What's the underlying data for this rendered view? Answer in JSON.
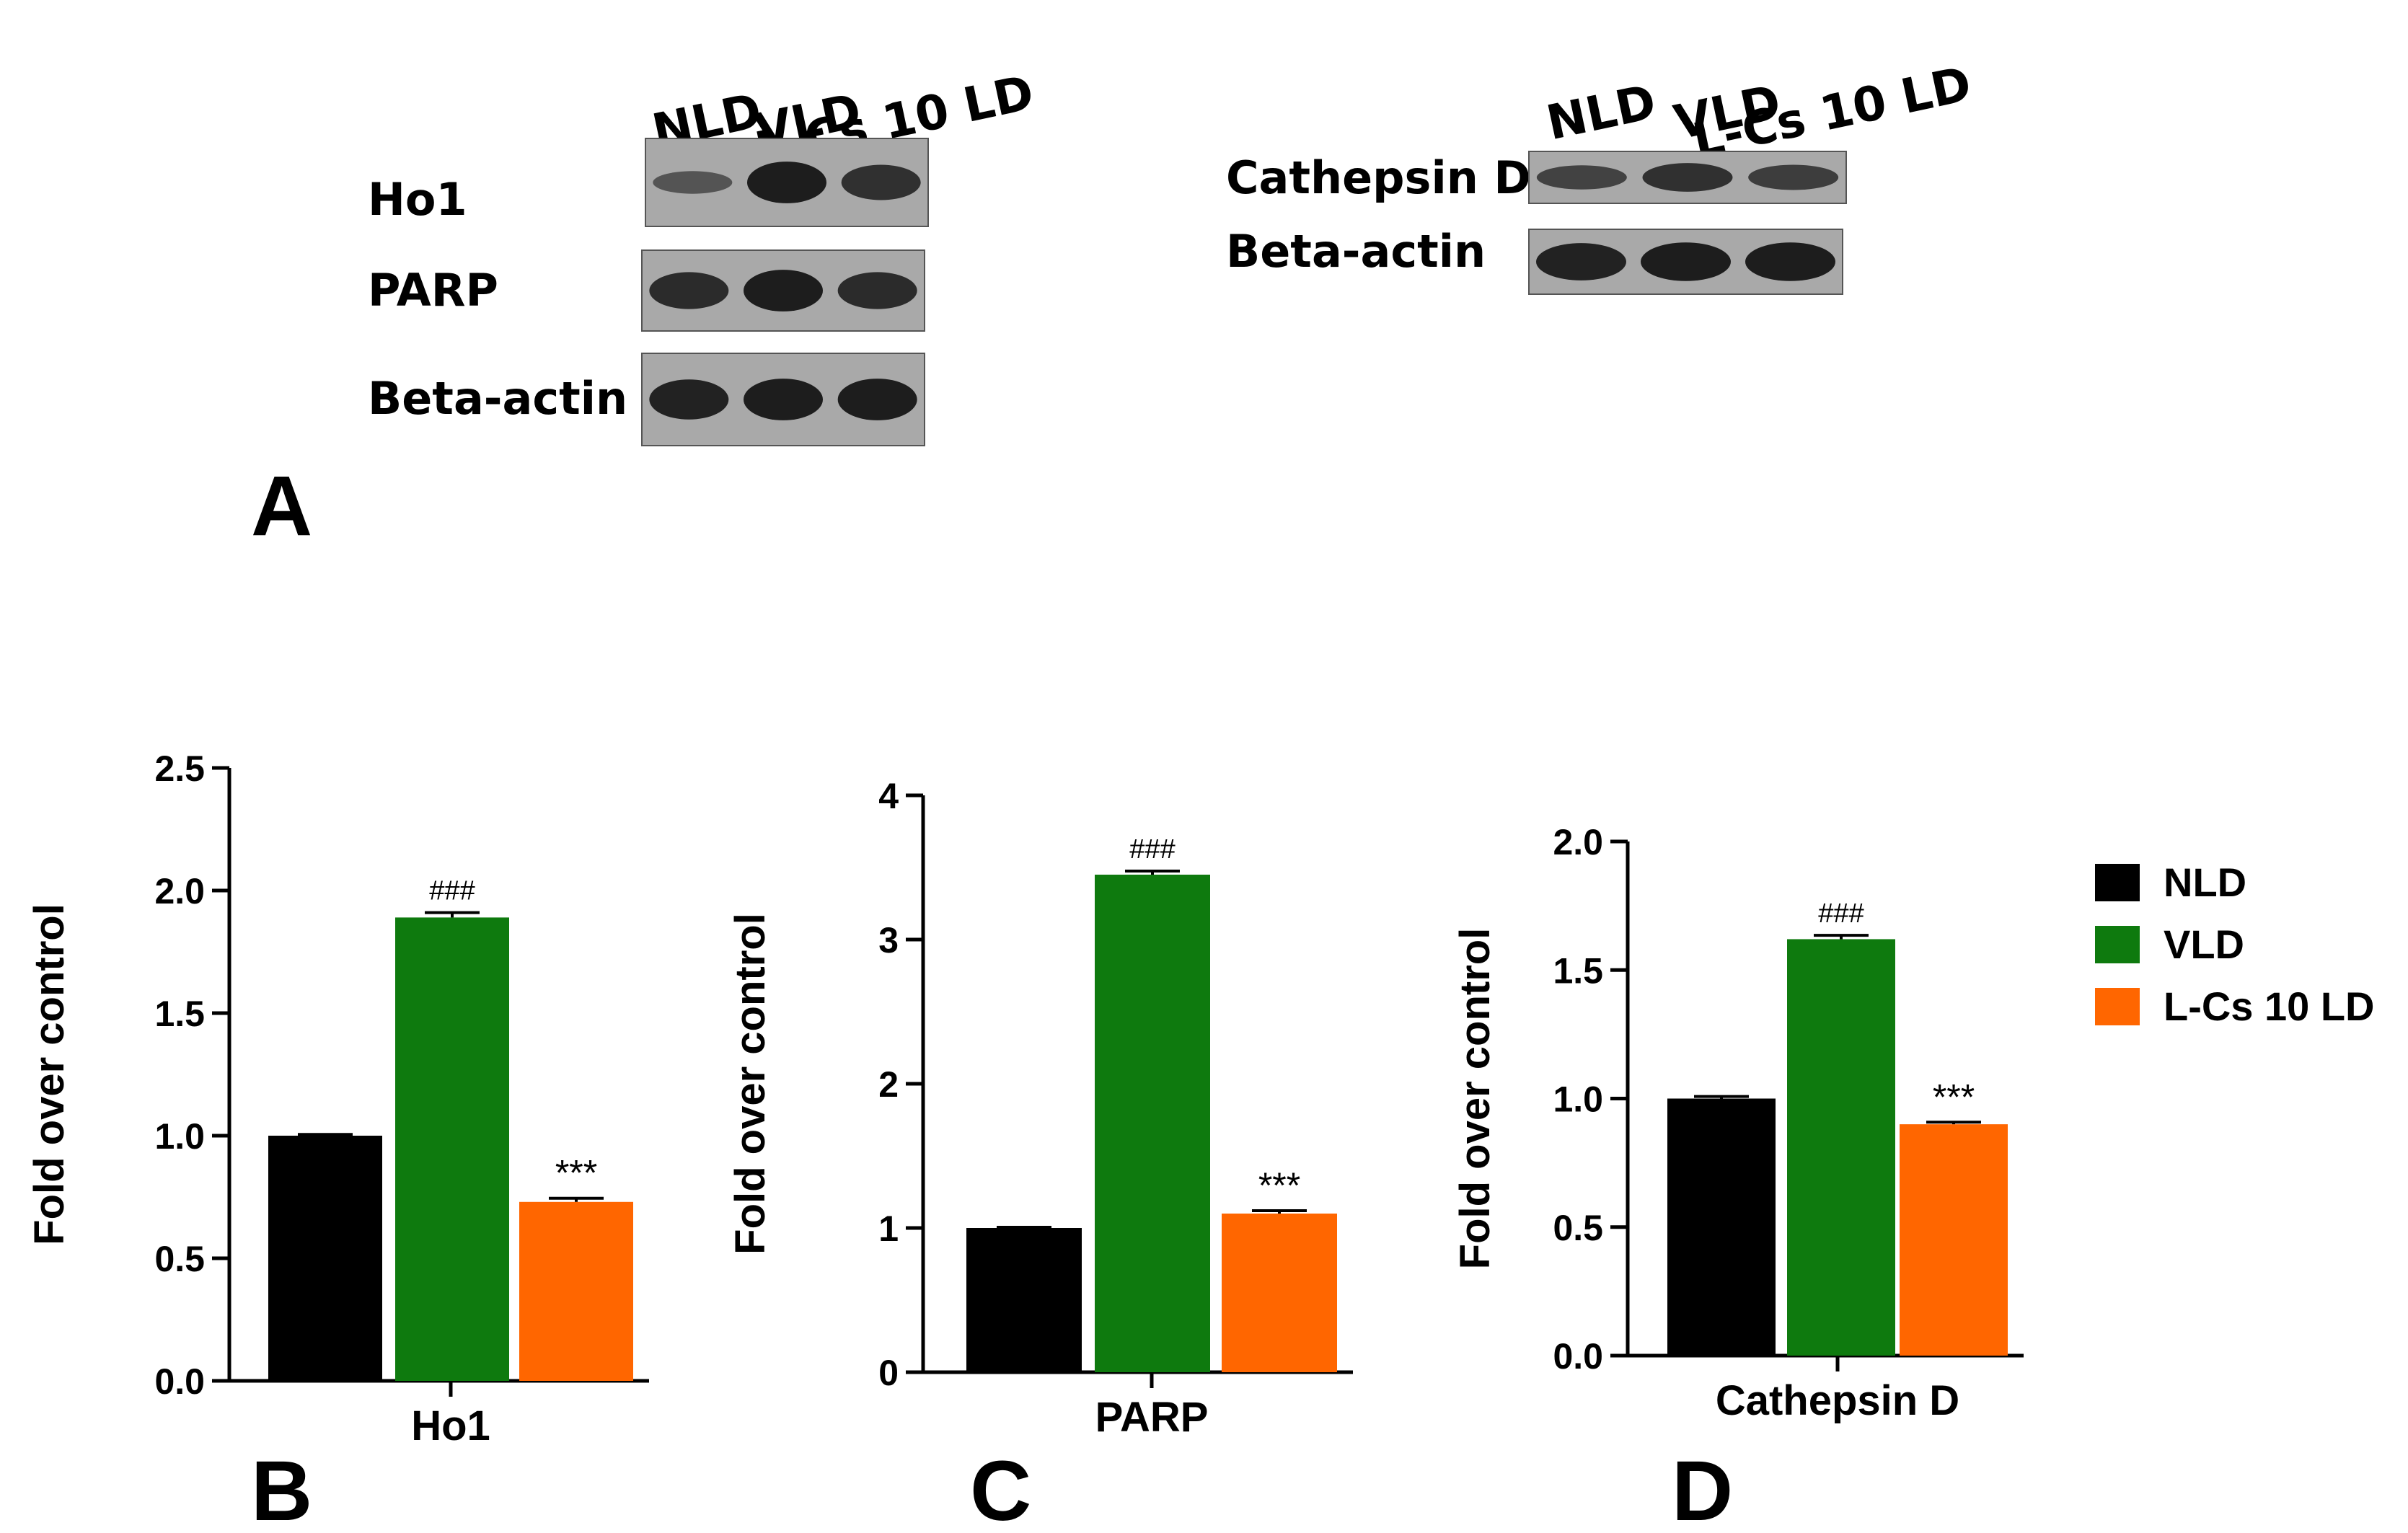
{
  "colors": {
    "NLD": "#000000",
    "VLD": "#0e7a0e",
    "L-Cs 10 LD": "#ff6600"
  },
  "panels": {
    "A": "A",
    "B": "B",
    "C": "C",
    "D": "D"
  },
  "blots": [
    {
      "lanes": [
        "NLD",
        "VLD",
        "L-Cs 10 LD"
      ],
      "rows": [
        {
          "label": "Ho1",
          "bands": [
            0.35,
            0.95,
            0.75
          ]
        },
        {
          "label": "PARP",
          "bands": [
            0.8,
            0.95,
            0.8
          ]
        },
        {
          "label": "Beta-actin",
          "bands": [
            0.9,
            0.95,
            0.95
          ]
        }
      ]
    },
    {
      "lanes": [
        "NLD",
        "VLD",
        "L-Cs 10 LD"
      ],
      "rows": [
        {
          "label": "Cathepsin D",
          "bands": [
            0.55,
            0.75,
            0.6
          ]
        },
        {
          "label": "Beta-actin",
          "bands": [
            0.9,
            0.95,
            0.95
          ]
        }
      ]
    }
  ],
  "legend": {
    "entries": [
      {
        "label": "NLD",
        "color": "#000000"
      },
      {
        "label": "VLD",
        "color": "#0e7a0e"
      },
      {
        "label": "L-Cs 10 LD",
        "color": "#ff6600"
      }
    ]
  },
  "chart_data": [
    {
      "type": "bar",
      "categories": [
        "NLD",
        "VLD",
        "L-Cs 10 LD"
      ],
      "values": [
        1.0,
        1.89,
        0.73
      ],
      "errors": [
        0.005,
        0.02,
        0.015
      ],
      "annotations": [
        "",
        "###",
        "***"
      ],
      "xlabel": "Ho1",
      "ylabel": "Fold over control",
      "ylim": [
        0,
        2.5
      ],
      "yticks": [
        "0.0",
        "0.5",
        "1.0",
        "1.5",
        "2.0",
        "2.5"
      ]
    },
    {
      "type": "bar",
      "categories": [
        "NLD",
        "VLD",
        "L-Cs 10 LD"
      ],
      "values": [
        1.0,
        3.45,
        1.1
      ],
      "errors": [
        0.005,
        0.025,
        0.02
      ],
      "annotations": [
        "",
        "###",
        "***"
      ],
      "xlabel": "PARP",
      "ylabel": "Fold over control",
      "ylim": [
        0,
        4
      ],
      "yticks": [
        "0",
        "1",
        "2",
        "3",
        "4"
      ]
    },
    {
      "type": "bar",
      "categories": [
        "NLD",
        "VLD",
        "L-Cs 10 LD"
      ],
      "values": [
        1.0,
        1.62,
        0.9
      ],
      "errors": [
        0.008,
        0.015,
        0.008
      ],
      "annotations": [
        "",
        "###",
        "***"
      ],
      "xlabel": "Cathepsin D",
      "ylabel": "Fold over control",
      "ylim": [
        0,
        2.0
      ],
      "yticks": [
        "0.0",
        "0.5",
        "1.0",
        "1.5",
        "2.0"
      ]
    }
  ]
}
